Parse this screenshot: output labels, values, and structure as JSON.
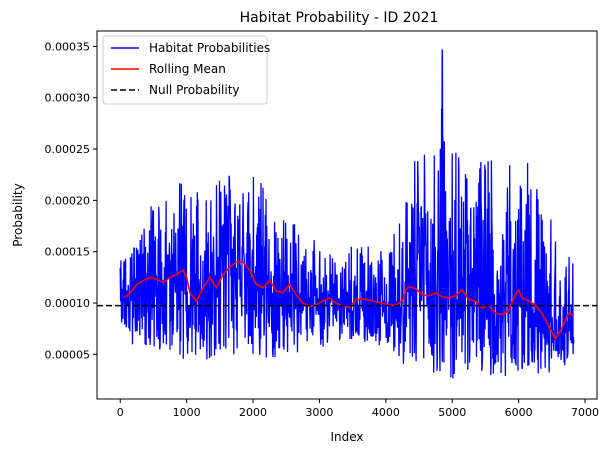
{
  "chart_data": {
    "type": "line",
    "title": "Habitat Probability - ID 2021",
    "xlabel": "Index",
    "ylabel": "Probability",
    "xlim": [
      -350,
      7180
    ],
    "ylim": [
      6.5e-06,
      0.000365
    ],
    "xticks": [
      0,
      1000,
      2000,
      3000,
      4000,
      5000,
      6000,
      7000
    ],
    "xtick_labels": [
      "0",
      "1000",
      "2000",
      "3000",
      "4000",
      "5000",
      "6000",
      "7000"
    ],
    "yticks": [
      5e-05,
      0.0001,
      0.00015,
      0.0002,
      0.00025,
      0.0003,
      0.00035
    ],
    "ytick_labels": [
      "0.00005",
      "0.00010",
      "0.00015",
      "0.00020",
      "0.00025",
      "0.00030",
      "0.00035"
    ],
    "grid": false,
    "legend_position": "top-left",
    "n_points": 6830,
    "series": [
      {
        "name": "Habitat Probabilities",
        "style": "line",
        "color": "#0000ff",
        "upper_envelope": {
          "x": [
            0,
            200,
            400,
            600,
            800,
            1000,
            1200,
            1400,
            1600,
            1800,
            2000,
            2200,
            2400,
            2600,
            2800,
            3000,
            3200,
            3400,
            3600,
            3800,
            4000,
            4200,
            4400,
            4600,
            4800,
            4850,
            4900,
            5000,
            5200,
            5400,
            5600,
            5800,
            6000,
            6200,
            6400,
            6600,
            6830
          ],
          "y": [
            0.00015,
            0.00016,
            0.00019,
            0.000215,
            0.00022,
            0.00023,
            0.000205,
            0.00022,
            0.000225,
            0.00023,
            0.000225,
            0.000215,
            0.000185,
            0.00018,
            0.000165,
            0.00016,
            0.00015,
            0.000155,
            0.00016,
            0.000155,
            0.000155,
            0.00019,
            0.00024,
            0.00025,
            0.00025,
            0.000347,
            0.00024,
            0.00025,
            0.000245,
            0.00025,
            0.00024,
            0.000245,
            0.00025,
            0.00023,
            0.000195,
            0.00017,
            0.00016
          ]
        },
        "lower_envelope": {
          "x": [
            0,
            200,
            400,
            600,
            800,
            1000,
            1200,
            1400,
            1600,
            1800,
            2000,
            2200,
            2400,
            2600,
            2800,
            3000,
            3200,
            3400,
            3600,
            3800,
            4000,
            4200,
            4400,
            4600,
            4800,
            5000,
            5200,
            5400,
            5600,
            5800,
            6000,
            6200,
            6400,
            6600,
            6830
          ],
          "y": [
            7e-05,
            5.5e-05,
            5e-05,
            4.5e-05,
            4.5e-05,
            4e-05,
            4.5e-05,
            4.5e-05,
            4.5e-05,
            4e-05,
            4e-05,
            4e-05,
            4.5e-05,
            5e-05,
            5.5e-05,
            5.5e-05,
            6e-05,
            6.5e-05,
            6e-05,
            6e-05,
            5.5e-05,
            4.5e-05,
            3e-05,
            2.5e-05,
            2.5e-05,
            2.5e-05,
            3e-05,
            2.5e-05,
            2.5e-05,
            2.5e-05,
            2.5e-05,
            3e-05,
            3e-05,
            3.5e-05,
            4e-05
          ]
        }
      },
      {
        "name": "Rolling Mean",
        "style": "line",
        "color": "#ff0000",
        "x": [
          60,
          150,
          250,
          350,
          450,
          550,
          650,
          750,
          850,
          950,
          1000,
          1050,
          1150,
          1250,
          1350,
          1450,
          1550,
          1650,
          1750,
          1850,
          1950,
          2050,
          2150,
          2250,
          2350,
          2450,
          2550,
          2650,
          2750,
          2850,
          2950,
          3050,
          3150,
          3250,
          3350,
          3450,
          3550,
          3650,
          3750,
          3850,
          3950,
          4050,
          4150,
          4250,
          4300,
          4350,
          4450,
          4550,
          4650,
          4750,
          4850,
          4950,
          5050,
          5150,
          5250,
          5350,
          5450,
          5550,
          5650,
          5750,
          5850,
          5950,
          6000,
          6050,
          6150,
          6250,
          6350,
          6450,
          6500,
          6550,
          6650,
          6750,
          6830
        ],
        "y": [
          0.000105,
          0.00011,
          0.000118,
          0.000122,
          0.000125,
          0.000123,
          0.00012,
          0.000125,
          0.000128,
          0.000132,
          0.000125,
          0.00011,
          0.000102,
          0.000115,
          0.000125,
          0.000115,
          0.000128,
          0.000135,
          0.00014,
          0.00014,
          0.000132,
          0.000118,
          0.000115,
          0.000122,
          0.000112,
          0.00011,
          0.000118,
          0.000108,
          0.0001,
          9.7e-05,
          9.8e-05,
          0.000102,
          0.000105,
          0.0001,
          9.7e-05,
          9.6e-05,
          0.000103,
          0.000104,
          0.000103,
          0.000101,
          0.0001,
          9.8e-05,
          9.8e-05,
          0.000102,
          0.000113,
          0.000116,
          0.000114,
          0.000108,
          0.000107,
          0.00011,
          0.000106,
          0.000105,
          0.000107,
          0.000113,
          0.000103,
          0.000102,
          9.5e-05,
          9.8e-05,
          9e-05,
          8.9e-05,
          9.2e-05,
          0.000108,
          0.000113,
          0.000105,
          0.000102,
          9.8e-05,
          9e-05,
          7.8e-05,
          7.2e-05,
          6.5e-05,
          7.5e-05,
          9e-05,
          8.8e-05
        ]
      },
      {
        "name": "Null Probability",
        "style": "dashed",
        "color": "#000000",
        "y": 9.75e-05
      }
    ]
  }
}
